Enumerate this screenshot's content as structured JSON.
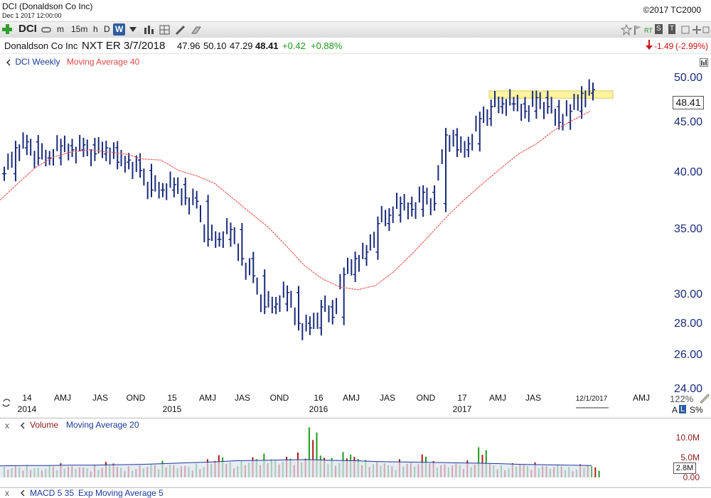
{
  "window": {
    "title": "DCI (Donaldson Co Inc)",
    "datetime": "Dec 1 2017 12:00:00",
    "copyright": "©2017 TC2000"
  },
  "toolbar": {
    "symbol": "DCI",
    "intervals": [
      "m",
      "15m",
      "h",
      "D",
      "W"
    ],
    "active_interval": "W",
    "right_labels": [
      "RT",
      "S",
      "T"
    ]
  },
  "quote": {
    "company": "Donaldson Co Inc",
    "next_earnings": "NXT ER 3/7/2018",
    "open": "47.96",
    "high": "50.10",
    "low": "47.29",
    "close": "48.41",
    "change": "+0.42",
    "change_pct": "+0.88%",
    "right_change": "-1.49",
    "right_change_pct": "(-2.99%)"
  },
  "legend": {
    "series": "DCI Weekly",
    "indicator": "Moving Average 40"
  },
  "price_axis": {
    "ticks": [
      "50.00",
      "45.00",
      "40.00",
      "35.00",
      "30.00",
      "28.00",
      "26.00",
      "24.00"
    ],
    "current": "48.41",
    "scale": "log"
  },
  "time_axis": {
    "labels": [
      {
        "top": "14",
        "bottom": "2014"
      },
      {
        "top": "AMJ",
        "bottom": ""
      },
      {
        "top": "JAS",
        "bottom": ""
      },
      {
        "top": "OND",
        "bottom": ""
      },
      {
        "top": "15",
        "bottom": "2015"
      },
      {
        "top": "AMJ",
        "bottom": ""
      },
      {
        "top": "JAS",
        "bottom": ""
      },
      {
        "top": "OND",
        "bottom": ""
      },
      {
        "top": "16",
        "bottom": "2016"
      },
      {
        "top": "AMJ",
        "bottom": ""
      },
      {
        "top": "JAS",
        "bottom": ""
      },
      {
        "top": "OND",
        "bottom": ""
      },
      {
        "top": "17",
        "bottom": "2017"
      },
      {
        "top": "AMJ",
        "bottom": ""
      },
      {
        "top": "JAS",
        "bottom": ""
      },
      {
        "top": "12/1/2017",
        "bottom": ""
      },
      {
        "top": "AMJ",
        "bottom": ""
      }
    ],
    "zoom": "122%",
    "scale_buttons": [
      "A",
      "L",
      "S%"
    ]
  },
  "volume_panel": {
    "title": "Volume",
    "indicator": "Moving Average 20",
    "ticks": [
      "10.0M",
      "5.0M",
      "0.00"
    ],
    "current": "2.8M"
  },
  "macd_panel": {
    "title": "MACD 5 35",
    "indicator": "Exp Moving Average 5"
  },
  "colors": {
    "up": "#1a9a1a",
    "down": "#1a2a7a",
    "ma": "#f06060",
    "volume_up": "#1f9a1f",
    "volume_down": "#b01818",
    "highlight": "#fff4a0",
    "accent_blue": "#1a3a9a"
  },
  "chart_data": {
    "type": "line",
    "series": [
      {
        "name": "DCI Weekly",
        "values": [
          39.7,
          42.2,
          42.8,
          41.2,
          41.2,
          42.4,
          42.0,
          42.5,
          41.6,
          42.2,
          40.8,
          41.0,
          40.0,
          38.2,
          38.2,
          38.7,
          37.5,
          37.2,
          34.0,
          34.0,
          34.8,
          32.5,
          31.2,
          29.0,
          29.2,
          30.0,
          27.9,
          27.6,
          29.0,
          28.3,
          31.3,
          32.5,
          33.0,
          35.3,
          36.0,
          37.0,
          36.5,
          38.0,
          37.0,
          43.5,
          42.0,
          42.6,
          45.2,
          46.5,
          46.8,
          46.8,
          46.0,
          47.5,
          46.5,
          44.8,
          46.0,
          48.0,
          48.41
        ]
      },
      {
        "name": "Moving Average 40",
        "values": [
          37.3,
          38.8,
          40.3,
          41.3,
          41.8,
          42.0,
          41.8,
          41.6,
          41.1,
          41.0,
          40.0,
          39.5,
          38.8,
          37.5,
          36.2,
          35.0,
          33.5,
          32.0,
          31.0,
          30.4,
          30.2,
          30.5,
          31.5,
          32.8,
          34.3,
          35.9,
          37.4,
          38.8,
          40.2,
          41.6,
          42.6,
          44.0,
          45.0,
          46.0
        ]
      }
    ],
    "ylim": [
      24,
      51
    ],
    "highlight_band": [
      47.6,
      48.1
    ],
    "volume": {
      "ylim": [
        0,
        12
      ],
      "values": [
        2.6,
        2.9,
        3.1,
        2.4,
        3.0,
        3.6,
        2.8,
        2.5,
        3.2,
        3.9,
        2.7,
        2.8,
        3.0,
        3.4,
        4.2,
        3.1,
        2.9,
        3.5,
        4.6,
        5.6,
        3.8,
        4.1,
        5.1,
        6.0,
        4.4,
        5.2,
        6.3,
        12.6,
        5.5,
        4.9,
        6.4,
        5.2,
        4.4,
        3.9,
        3.1,
        4.6,
        3.7,
        5.8,
        4.1,
        3.3,
        3.5,
        4.3,
        7.6,
        3.4,
        3.0,
        3.6,
        3.2,
        3.8,
        2.9,
        3.1,
        2.6,
        3.3,
        2.8
      ],
      "ma20": [
        2.9,
        3.0,
        3.0,
        3.1,
        3.1,
        3.2,
        3.3,
        3.5,
        3.7,
        3.9,
        4.2,
        4.3,
        4.4,
        4.5,
        4.3,
        4.2,
        4.0,
        3.9,
        3.8,
        3.7,
        3.6,
        3.5,
        3.3,
        3.2,
        3.1,
        3.0
      ]
    }
  }
}
